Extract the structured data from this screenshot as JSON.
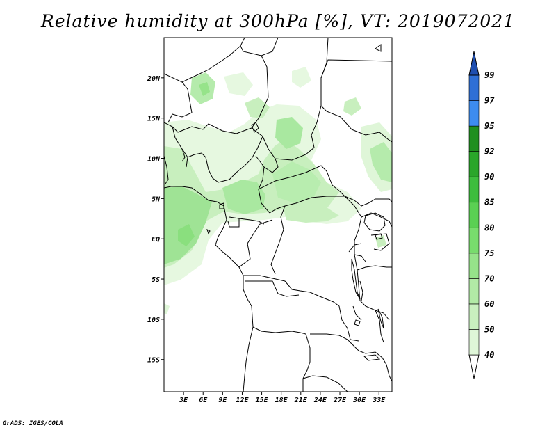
{
  "title": "Relative humidity at 300hPa [%], VT: 2019072021",
  "credit": "GrADS: IGES/COLA",
  "map": {
    "lat_labels": [
      "20N",
      "15N",
      "10N",
      "5N",
      "EQ",
      "5S",
      "10S",
      "15S"
    ],
    "lon_labels": [
      "3E",
      "6E",
      "9E",
      "12E",
      "15E",
      "18E",
      "21E",
      "24E",
      "27E",
      "30E",
      "33E"
    ],
    "lat_range": [
      -19,
      25
    ],
    "lon_range": [
      0,
      35
    ]
  },
  "colorbar": {
    "levels": [
      "40",
      "50",
      "60",
      "70",
      "75",
      "80",
      "85",
      "90",
      "92",
      "95",
      "97",
      "99"
    ],
    "colors": [
      "#edfbe9",
      "#dff6d8",
      "#c9f0bf",
      "#b2eaa6",
      "#96e38a",
      "#78dc6d",
      "#5ad053",
      "#3dbd3d",
      "#2aa62a",
      "#1f8f1f",
      "#3d8cf0",
      "#2f6fd6",
      "#1f4fb0"
    ],
    "under_color": "#ffffff",
    "over_color": "#1f4fb0"
  },
  "colors": {
    "land": "#ffffff",
    "border": "#000000"
  }
}
